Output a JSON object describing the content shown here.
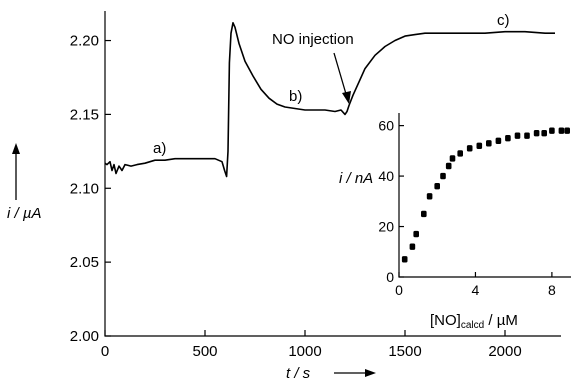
{
  "chart_data": [
    {
      "type": "line",
      "title": "",
      "xlabel": "t / s",
      "ylabel": "i / µA",
      "xlim": [
        0,
        2280
      ],
      "ylim": [
        2.0,
        2.22
      ],
      "x_ticks": [
        0,
        500,
        1000,
        1500,
        2000
      ],
      "x_tick_labels": [
        "0",
        "500",
        "1000",
        "1500",
        "2000"
      ],
      "y_ticks": [
        2.0,
        2.05,
        2.1,
        2.15,
        2.2
      ],
      "y_tick_labels": [
        "2.00",
        "2.05",
        "2.10",
        "2.15",
        "2.20"
      ],
      "grid": false,
      "series": [
        {
          "x": [
            0,
            10,
            25,
            35,
            45,
            55,
            70,
            85,
            100,
            130,
            160,
            200,
            250,
            300,
            350,
            400,
            450,
            500,
            550,
            585,
            598,
            608,
            615,
            622,
            630,
            640,
            650,
            670,
            700,
            740,
            780,
            820,
            860,
            900,
            950,
            1000,
            1050,
            1100,
            1150,
            1180,
            1200,
            1210,
            1220,
            1240,
            1270,
            1300,
            1350,
            1400,
            1450,
            1500,
            1550,
            1600,
            1650,
            1700,
            1800,
            1900,
            2000,
            2100,
            2200,
            2250
          ],
          "y": [
            2.117,
            2.116,
            2.118,
            2.112,
            2.116,
            2.11,
            2.115,
            2.112,
            2.116,
            2.115,
            2.116,
            2.117,
            2.119,
            2.119,
            2.12,
            2.12,
            2.12,
            2.12,
            2.12,
            2.118,
            2.112,
            2.108,
            2.125,
            2.185,
            2.205,
            2.212,
            2.209,
            2.198,
            2.186,
            2.176,
            2.167,
            2.161,
            2.157,
            2.155,
            2.154,
            2.153,
            2.153,
            2.153,
            2.152,
            2.153,
            2.15,
            2.152,
            2.156,
            2.163,
            2.172,
            2.181,
            2.19,
            2.196,
            2.2,
            2.203,
            2.204,
            2.205,
            2.205,
            2.205,
            2.205,
            2.205,
            2.206,
            2.206,
            2.205,
            2.205
          ]
        }
      ],
      "annotations": [
        {
          "text": "a)",
          "x": 270,
          "y": 2.124
        },
        {
          "text": "b)",
          "x": 920,
          "y": 2.158
        },
        {
          "text": "NO injection",
          "x": 1140,
          "y": 2.206
        },
        {
          "text": "c)",
          "x": 1930,
          "y": 2.212
        }
      ]
    },
    {
      "type": "scatter",
      "title": "",
      "xlabel_main": "[NO]",
      "xlabel_sub": "calcd",
      "xlabel_unit": " / µM",
      "ylabel": "i / nA",
      "xlim": [
        0,
        9
      ],
      "ylim": [
        0,
        65
      ],
      "x_ticks": [
        0,
        4,
        8
      ],
      "x_tick_labels": [
        "0",
        "4",
        "8"
      ],
      "y_ticks": [
        0,
        20,
        40,
        60
      ],
      "y_tick_labels": [
        "0",
        "20",
        "40",
        "60"
      ],
      "grid": false,
      "series": [
        {
          "x": [
            0.3,
            0.7,
            0.9,
            1.3,
            1.6,
            2.0,
            2.3,
            2.6,
            2.8,
            3.2,
            3.7,
            4.2,
            4.7,
            5.2,
            5.7,
            6.2,
            6.7,
            7.2,
            7.6,
            8.0,
            8.5,
            8.8
          ],
          "y": [
            7,
            12,
            17,
            25,
            32,
            36,
            40,
            44,
            47,
            49,
            51,
            52,
            53,
            54,
            55,
            56,
            56,
            57,
            57,
            58,
            58,
            58
          ]
        }
      ]
    }
  ]
}
